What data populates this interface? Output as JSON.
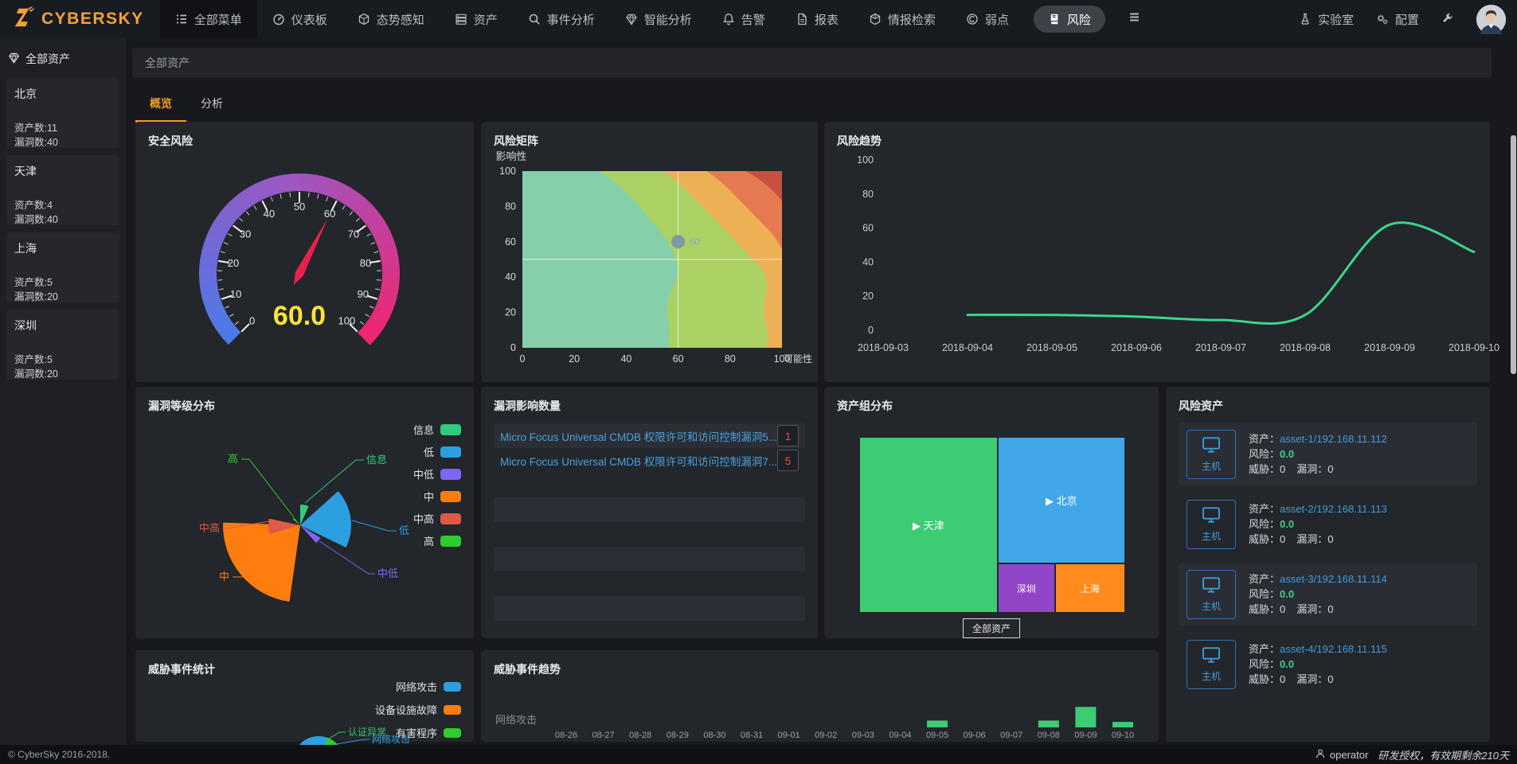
{
  "navbar": {
    "logo_text": "CYBERSKY",
    "menu": [
      {
        "label": "全部菜单",
        "icon": "menu-list-icon",
        "block": true
      },
      {
        "label": "仪表板",
        "icon": "dashboard-icon"
      },
      {
        "label": "态势感知",
        "icon": "situation-cube-icon"
      },
      {
        "label": "资产",
        "icon": "asset-server-icon"
      },
      {
        "label": "事件分析",
        "icon": "search-icon"
      },
      {
        "label": "智能分析",
        "icon": "gem-icon"
      },
      {
        "label": "告警",
        "icon": "bell-icon"
      },
      {
        "label": "报表",
        "icon": "report-file-icon"
      },
      {
        "label": "情报检索",
        "icon": "intel-cube-icon"
      },
      {
        "label": "弱点",
        "icon": "weakness-icon"
      },
      {
        "label": "风险",
        "icon": "risk-book-icon",
        "active": true
      }
    ],
    "lab_label": "实验室",
    "config_label": "配置"
  },
  "sidebar": {
    "title": "全部资产",
    "groups": [
      {
        "name": "北京",
        "asset_count": "资产数:11",
        "vuln_count": "漏洞数:40"
      },
      {
        "name": "天津",
        "asset_count": "资产数:4",
        "vuln_count": "漏洞数:40"
      },
      {
        "name": "上海",
        "asset_count": "资产数:5",
        "vuln_count": "漏洞数:20"
      },
      {
        "name": "深圳",
        "asset_count": "资产数:5",
        "vuln_count": "漏洞数:20"
      }
    ]
  },
  "breadcrumb": "全部资产",
  "tabs": [
    {
      "label": "概览",
      "active": true
    },
    {
      "label": "分析",
      "active": false
    }
  ],
  "cards": {
    "gauge_title": "安全风险",
    "matrix_title": "风险矩阵",
    "trend_title": "风险趋势",
    "rose_title": "漏洞等级分布",
    "impact_title": "漏洞影响数量",
    "treemap_title": "资产组分布",
    "risk_assets_title": "风险资产",
    "threat_stats_title": "威胁事件统计",
    "threat_trend_title": "威胁事件趋势"
  },
  "impact_list": {
    "items": [
      {
        "text": "Micro Focus Universal CMDB 权限许可和访问控制漏洞5...",
        "count": "1"
      },
      {
        "text": "Micro Focus Universal CMDB 权限许可和访问控制漏洞7...",
        "count": "5"
      }
    ]
  },
  "risk_assets": {
    "field_labels": {
      "asset": "资产：",
      "risk": "风险：",
      "threat": "威胁：",
      "vuln": "漏洞："
    },
    "type_label": "主机",
    "items": [
      {
        "name": "asset-1/192.168.11.112",
        "risk": "0.0",
        "threat": "0",
        "vuln": "0"
      },
      {
        "name": "asset-2/192.168.11.113",
        "risk": "0.0",
        "threat": "0",
        "vuln": "0"
      },
      {
        "name": "asset-3/192.168.11.114",
        "risk": "0.0",
        "threat": "0",
        "vuln": "0"
      },
      {
        "name": "asset-4/192.168.11.115",
        "risk": "0.0",
        "threat": "0",
        "vuln": "0"
      }
    ]
  },
  "footer": {
    "copyright": "© CyberSky 2016-2018.",
    "user": "operator",
    "license": "研发授权，有效期剩余210天"
  },
  "chart_data": [
    {
      "id": "gauge",
      "type": "gauge",
      "title": "安全风险",
      "value": 60.0,
      "value_text": "60.0",
      "min": 0,
      "max": 100,
      "tick_labels": [
        "0",
        "10",
        "20",
        "30",
        "40",
        "50",
        "60",
        "70",
        "80",
        "90",
        "100"
      ],
      "color_stops": [
        "#4a7bea",
        "#a055c0",
        "#f2246f"
      ],
      "needle_color": "#e8204e",
      "value_color": "#ffe43a"
    },
    {
      "id": "matrix",
      "type": "heatmap",
      "title": "风险矩阵",
      "xlabel": "可能性",
      "ylabel": "影响性",
      "x_ticks": [
        0,
        20,
        40,
        60,
        80,
        100
      ],
      "y_ticks": [
        0,
        20,
        40,
        60,
        80,
        100
      ],
      "point": {
        "x": 60,
        "y": 60,
        "label": "60",
        "color": "#7c95aa"
      },
      "crosshair": {
        "x": 60,
        "y": 50
      },
      "band_colors": [
        "#85cfab",
        "#abd164",
        "#eeb055",
        "#e57a50",
        "#c94f43"
      ]
    },
    {
      "id": "trend",
      "type": "line",
      "title": "风险趋势",
      "x": [
        "2018-09-03",
        "2018-09-04",
        "2018-09-05",
        "2018-09-06",
        "2018-09-07",
        "2018-09-08",
        "2018-09-09",
        "2018-09-10"
      ],
      "values": [
        null,
        9,
        9,
        8,
        6,
        9,
        62,
        46
      ],
      "ylim": [
        0,
        100
      ],
      "y_ticks": [
        0,
        20,
        40,
        60,
        80,
        100
      ],
      "color": "#3bd68c"
    },
    {
      "id": "rose",
      "type": "pie",
      "variant": "rose",
      "title": "漏洞等级分布",
      "categories": [
        "信息",
        "低",
        "中低",
        "中",
        "中高",
        "高"
      ],
      "values": [
        2,
        11,
        1,
        20,
        3,
        1
      ],
      "colors": [
        "#2fcc7f",
        "#2b9fe0",
        "#7d66f2",
        "#ff7d0e",
        "#e05a47",
        "#2ecc2e"
      ],
      "legend_position": "right"
    },
    {
      "id": "treemap",
      "type": "treemap",
      "title": "资产组分布",
      "nodes": [
        {
          "label": "天津",
          "color": "#3dcb73",
          "prefix": "▶ "
        },
        {
          "label": "北京",
          "color": "#42a7e8",
          "prefix": "▶ "
        },
        {
          "label": "深圳",
          "color": "#9146c8",
          "prefix": ""
        },
        {
          "label": "上海",
          "color": "#ff8a1e",
          "prefix": ""
        }
      ],
      "button": "全部资产"
    },
    {
      "id": "threat_pie",
      "type": "pie",
      "title": "威胁事件统计",
      "legend": [
        {
          "label": "网络攻击",
          "color": "#2b9fe0"
        },
        {
          "label": "设备设施故障",
          "color": "#ff7d0e"
        },
        {
          "label": "有害程序",
          "color": "#2ecc2e"
        }
      ],
      "visible_labels": [
        {
          "label": "认证异常",
          "color": "#2ecc71"
        },
        {
          "label": "网络攻击",
          "color": "#2b9fe0"
        }
      ]
    },
    {
      "id": "threat_bar",
      "type": "bar",
      "title": "威胁事件趋势",
      "row_label": "网络攻击",
      "categories": [
        "08-26",
        "08-27",
        "08-28",
        "08-29",
        "08-30",
        "08-31",
        "09-01",
        "09-02",
        "09-03",
        "09-04",
        "09-05",
        "09-06",
        "09-07",
        "09-08",
        "09-09",
        "09-10"
      ],
      "values": [
        0,
        0,
        0,
        0,
        0,
        0,
        0,
        0,
        0,
        0,
        1,
        0,
        0,
        1,
        3,
        0.8
      ],
      "color": "#3dcb73"
    }
  ]
}
